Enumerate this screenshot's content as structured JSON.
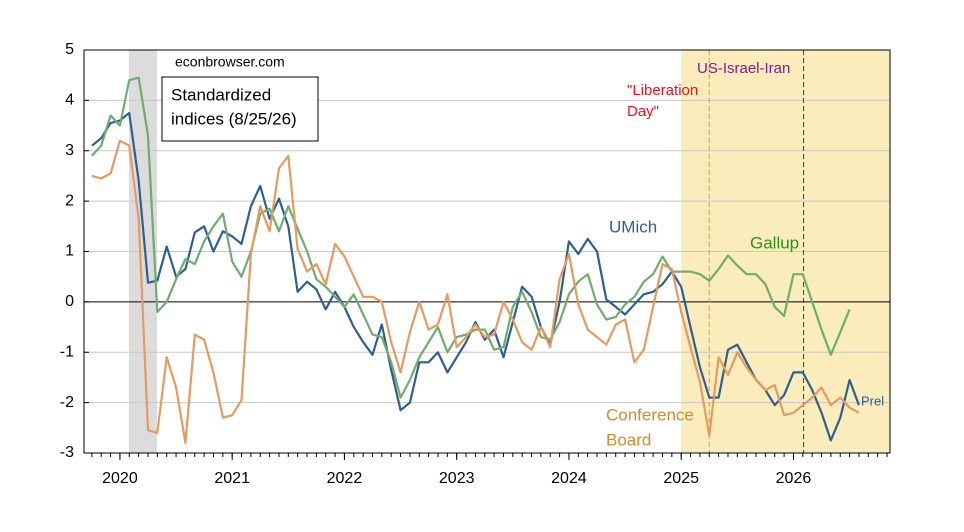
{
  "chart_data": {
    "type": "line",
    "site": "econbrowser.com",
    "legend_box": [
      "Standardized",
      "indices (8/25/26)"
    ],
    "annotations": [
      {
        "lines": [
          "\"Liberation",
          "Day\""
        ],
        "color": "#e8141e",
        "x": 2025.25,
        "line_color": "#e8912e"
      },
      {
        "lines": [
          "US-Israel-Iran"
        ],
        "color": "#8b1a8b",
        "x": 2026.09,
        "line_color": "#7b1a7b"
      }
    ],
    "series_labels": [
      [
        "UMich"
      ],
      [
        "Gallup"
      ],
      [
        "Conference",
        "Board"
      ]
    ],
    "prelim_label": "Prel",
    "recession": [
      2020.08,
      2020.33
    ],
    "highlight": [
      2025,
      2026.86
    ],
    "highlight_color": "#fbecbb",
    "recession_color": "#dcdcdc",
    "xlim": [
      2019.68,
      2026.86
    ],
    "xticks": [
      2020,
      2021,
      2022,
      2023,
      2024,
      2025,
      2026
    ],
    "ylim": [
      -3,
      5
    ],
    "yticks": [
      -3,
      -2,
      -1,
      0,
      1,
      2,
      3,
      4,
      5
    ],
    "grid": true,
    "x": [
      2019.75,
      2019.833,
      2019.917,
      2020,
      2020.083,
      2020.167,
      2020.25,
      2020.333,
      2020.417,
      2020.5,
      2020.583,
      2020.667,
      2020.75,
      2020.833,
      2020.917,
      2021,
      2021.083,
      2021.167,
      2021.25,
      2021.333,
      2021.417,
      2021.5,
      2021.583,
      2021.667,
      2021.75,
      2021.833,
      2021.917,
      2022,
      2022.083,
      2022.167,
      2022.25,
      2022.333,
      2022.417,
      2022.5,
      2022.583,
      2022.667,
      2022.75,
      2022.833,
      2022.917,
      2023,
      2023.083,
      2023.167,
      2023.25,
      2023.333,
      2023.417,
      2023.5,
      2023.583,
      2023.667,
      2023.75,
      2023.833,
      2023.917,
      2024,
      2024.083,
      2024.167,
      2024.25,
      2024.333,
      2024.417,
      2024.5,
      2024.583,
      2024.667,
      2024.75,
      2024.833,
      2024.917,
      2025,
      2025.083,
      2025.167,
      2025.25,
      2025.333,
      2025.417,
      2025.5,
      2025.583,
      2025.667,
      2025.75,
      2025.833,
      2025.917,
      2026,
      2026.083,
      2026.167,
      2026.25,
      2026.333,
      2026.417,
      2026.5,
      2026.583
    ],
    "series": [
      {
        "name": "UMich",
        "color": "#2f5f8f",
        "values": [
          3.1,
          3.25,
          3.55,
          3.6,
          3.75,
          2.4,
          0.38,
          0.42,
          1.1,
          0.5,
          0.65,
          1.38,
          1.5,
          1.0,
          1.4,
          1.3,
          1.15,
          1.9,
          2.3,
          1.65,
          2.05,
          1.5,
          0.2,
          0.4,
          0.25,
          -0.15,
          0.2,
          -0.1,
          -0.5,
          -0.8,
          -1.05,
          -0.45,
          -1.35,
          -2.15,
          -2.0,
          -1.2,
          -1.2,
          -1.0,
          -1.4,
          -1.1,
          -0.8,
          -0.4,
          -0.75,
          -0.55,
          -1.1,
          -0.4,
          0.3,
          0.1,
          -0.5,
          -0.85,
          0.0,
          1.2,
          0.95,
          1.25,
          1.0,
          0.05,
          -0.1,
          -0.25,
          -0.05,
          0.15,
          0.2,
          0.35,
          0.6,
          0.3,
          -0.5,
          -1.3,
          -1.9,
          -1.9,
          -0.95,
          -0.85,
          -1.2,
          -1.55,
          -1.75,
          -2.05,
          -1.85,
          -1.4,
          -1.4,
          -1.75,
          -2.2,
          -2.75,
          -2.3,
          -1.55,
          -2.05
        ]
      },
      {
        "name": "Gallup",
        "color": "#6fac6f",
        "values": [
          2.9,
          3.1,
          3.7,
          3.5,
          4.4,
          4.45,
          3.3,
          -0.2,
          0.0,
          0.45,
          0.85,
          0.75,
          1.2,
          1.5,
          1.75,
          0.8,
          0.5,
          1.0,
          1.75,
          1.85,
          1.4,
          1.9,
          1.45,
          1.0,
          0.45,
          0.3,
          0.1,
          -0.1,
          0.15,
          -0.25,
          -0.65,
          -0.7,
          -1.2,
          -1.9,
          -1.55,
          -1.1,
          -0.8,
          -0.5,
          -1.0,
          -0.7,
          -0.65,
          -0.55,
          -0.55,
          -0.95,
          -0.9,
          -0.1,
          0.2,
          -0.2,
          -0.7,
          -0.75,
          -0.4,
          0.15,
          0.4,
          0.55,
          -0.05,
          -0.35,
          -0.3,
          -0.05,
          0.1,
          0.4,
          0.55,
          0.9,
          0.6,
          0.6,
          0.6,
          0.55,
          0.42,
          0.65,
          0.92,
          0.72,
          0.55,
          0.55,
          0.35,
          -0.1,
          -0.28,
          0.55,
          0.55,
          0.0,
          -0.55,
          -1.05,
          -0.6,
          -0.15,
          null
        ]
      },
      {
        "name": "Conference Board",
        "color": "#e39a63",
        "values": [
          2.5,
          2.45,
          2.55,
          3.2,
          3.1,
          1.65,
          -2.55,
          -2.6,
          -1.1,
          -1.7,
          -2.8,
          -0.65,
          -0.75,
          -1.4,
          -2.3,
          -2.25,
          -1.95,
          0.95,
          1.9,
          1.4,
          2.65,
          2.9,
          1.05,
          0.6,
          0.75,
          0.35,
          1.15,
          0.9,
          0.5,
          0.1,
          0.1,
          0.0,
          -0.8,
          -1.4,
          -0.6,
          0.0,
          -0.55,
          -0.45,
          0.15,
          -0.9,
          -0.7,
          -0.45,
          -0.7,
          -0.65,
          0.0,
          -0.35,
          -0.8,
          -0.95,
          -0.5,
          -0.9,
          0.45,
          0.95,
          -0.05,
          -0.55,
          -0.7,
          -0.85,
          -0.45,
          -0.35,
          -1.2,
          -0.95,
          -0.1,
          0.75,
          0.65,
          -0.2,
          -0.9,
          -1.6,
          -2.65,
          -1.1,
          -1.45,
          -1.0,
          -1.3,
          -1.55,
          -1.75,
          -1.65,
          -2.25,
          -2.2,
          -2.05,
          -1.9,
          -1.7,
          -2.05,
          -1.9,
          -2.1,
          -2.2
        ]
      }
    ]
  }
}
